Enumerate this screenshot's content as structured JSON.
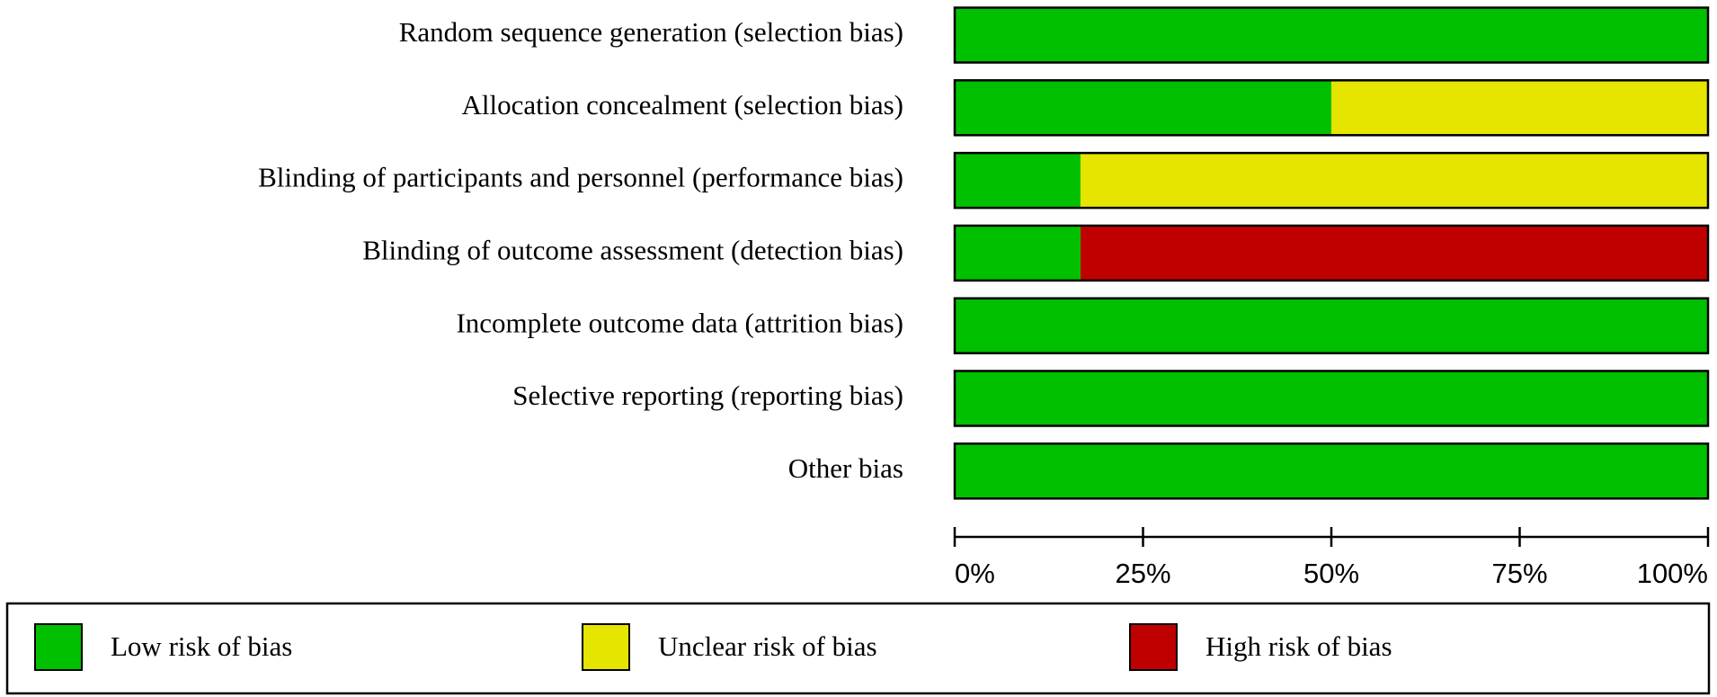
{
  "chart_data": {
    "type": "stacked-barh",
    "categories": [
      "Random sequence generation (selection bias)",
      "Allocation concealment (selection bias)",
      "Blinding of participants and personnel (performance bias)",
      "Blinding of outcome assessment (detection bias)",
      "Incomplete outcome data (attrition bias)",
      "Selective reporting (reporting bias)",
      "Other bias"
    ],
    "series": [
      {
        "name": "Low risk of bias",
        "color": "#00c000",
        "values": [
          100,
          50,
          16.7,
          16.7,
          100,
          100,
          100
        ]
      },
      {
        "name": "Unclear risk of bias",
        "color": "#e5e500",
        "values": [
          0,
          50,
          83.3,
          0,
          0,
          0,
          0
        ]
      },
      {
        "name": "High risk of bias",
        "color": "#c00000",
        "values": [
          0,
          0,
          0,
          83.3,
          0,
          0,
          0
        ]
      }
    ],
    "xlim": [
      0,
      100
    ],
    "xticks": [
      {
        "value": 0,
        "label": "0%"
      },
      {
        "value": 25,
        "label": "25%"
      },
      {
        "value": 50,
        "label": "50%"
      },
      {
        "value": 75,
        "label": "75%"
      },
      {
        "value": 100,
        "label": "100%"
      }
    ],
    "legend": "bottom"
  }
}
